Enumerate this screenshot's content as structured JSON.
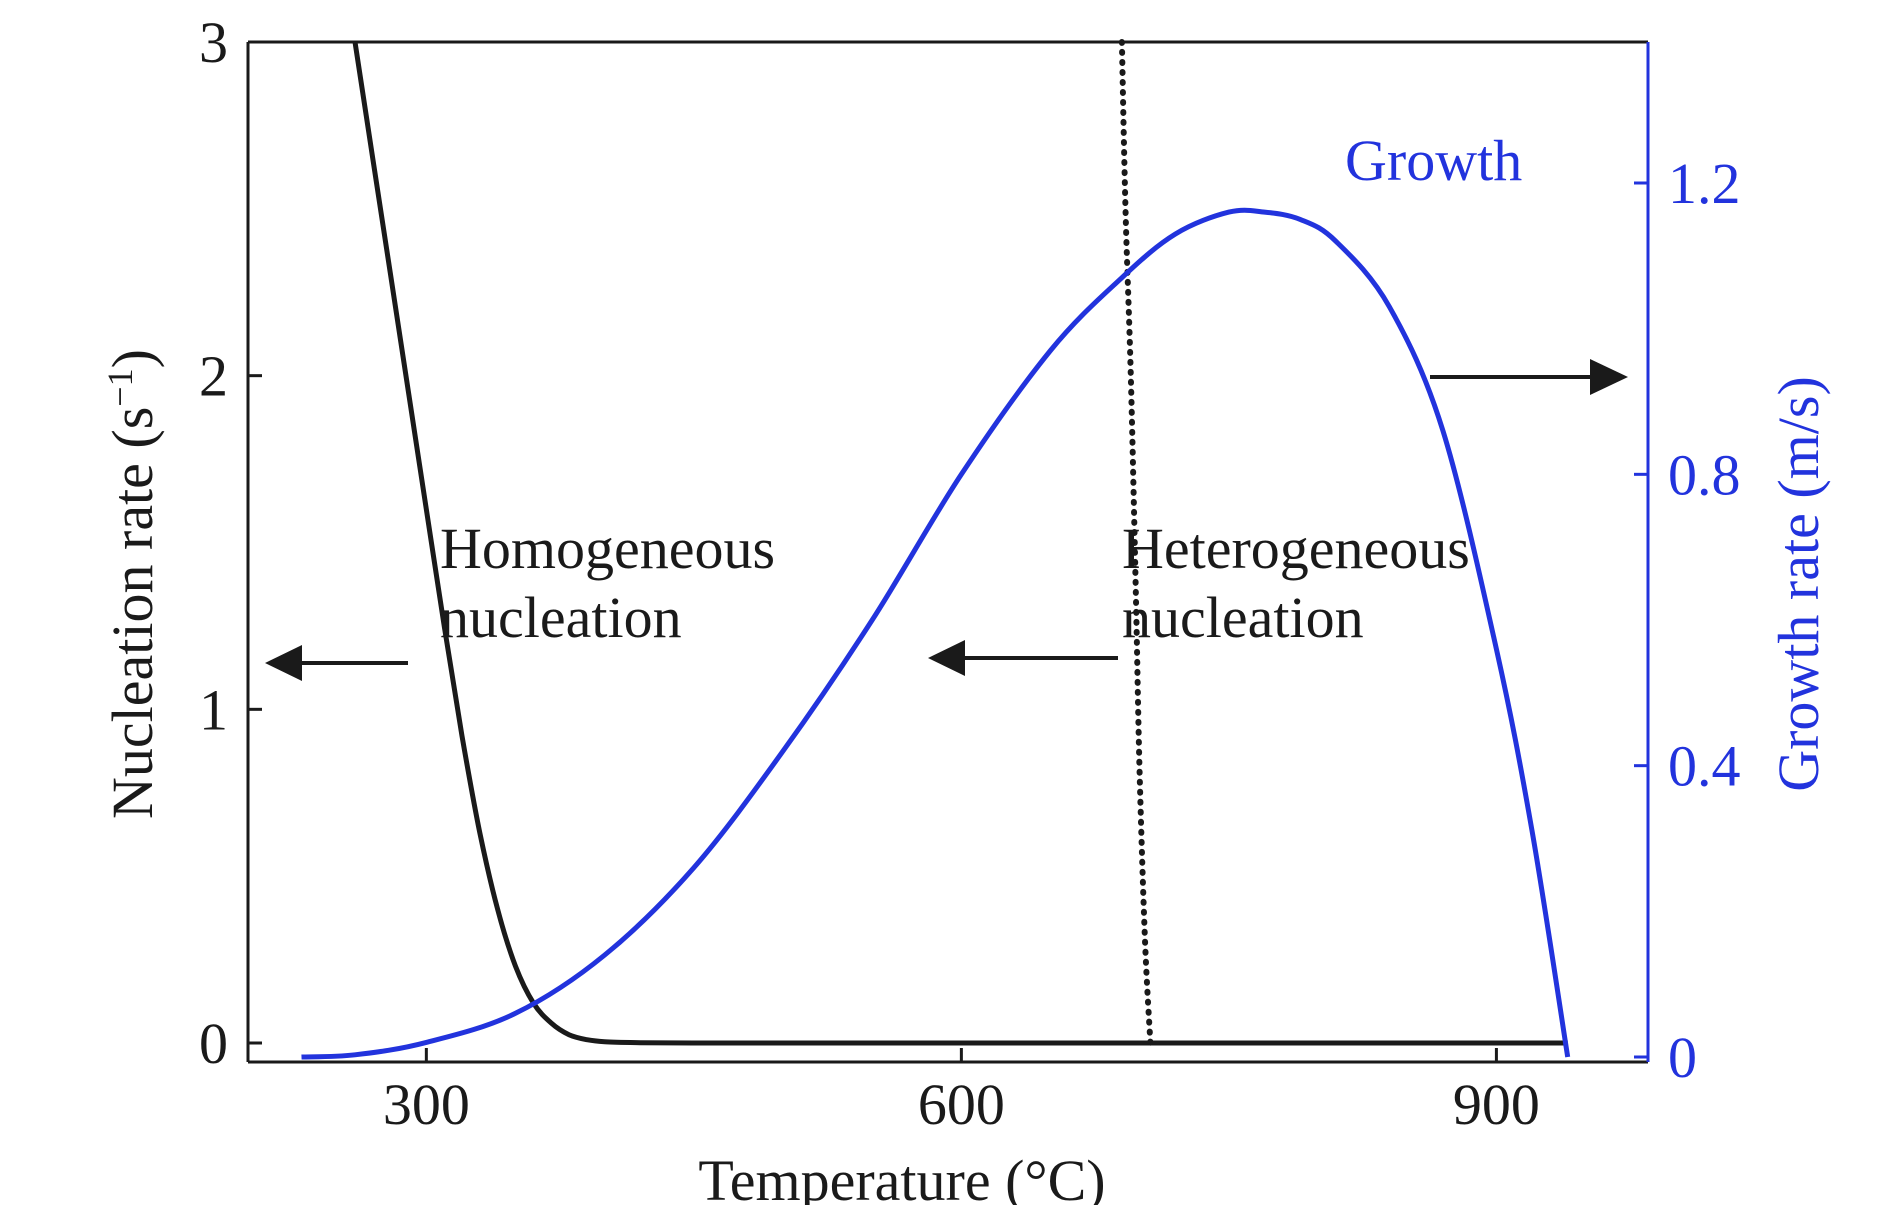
{
  "colors": {
    "nucleation": "#1a1a1a",
    "growth": "#2233dd",
    "background": "#ffffff"
  },
  "chart_data": {
    "type": "line",
    "title": "",
    "xlabel": "Temperature (°C)",
    "ylabel_left": "Nucleation rate (s",
    "ylabel_left_exp": "−1",
    "ylabel_left_close": ")",
    "ylabel_right": "Growth rate (m/s)",
    "xlim": [
      200,
      985
    ],
    "ylim_left": [
      0,
      3
    ],
    "ylim_right": [
      0,
      1.4
    ],
    "x_ticks": [
      300,
      600,
      900
    ],
    "x_tick_labels": [
      "300",
      "600",
      "900"
    ],
    "y_left_ticks": [
      0,
      1,
      2,
      3
    ],
    "y_left_tick_labels": [
      "0",
      "1",
      "2",
      "3"
    ],
    "y_right_ticks": [
      0,
      0.4,
      0.8,
      1.2
    ],
    "y_right_tick_labels": [
      "0",
      "0.4",
      "0.8",
      "1.2"
    ],
    "grid": false,
    "series": [
      {
        "axis": "left",
        "style": "solid",
        "x": [
          260,
          270,
          280,
          290,
          300,
          310,
          320,
          330,
          340,
          350,
          360,
          370,
          380,
          390,
          400,
          420,
          450,
          500,
          600,
          700,
          800,
          900,
          940
        ],
        "y": [
          3.0,
          2.65,
          2.3,
          1.95,
          1.6,
          1.25,
          0.92,
          0.63,
          0.4,
          0.23,
          0.12,
          0.06,
          0.025,
          0.01,
          0.004,
          0.001,
          0,
          0,
          0,
          0,
          0,
          0,
          0
        ]
      },
      {
        "axis": "left",
        "style": "dotted",
        "x": [
          690,
          692,
          695,
          698,
          700,
          703,
          706
        ],
        "y": [
          3.0,
          2.5,
          2.0,
          1.3,
          0.8,
          0.3,
          0.0
        ]
      },
      {
        "name": "Growth",
        "axis": "right",
        "style": "solid",
        "x": [
          230,
          260,
          300,
          350,
          400,
          450,
          500,
          550,
          600,
          650,
          690,
          720,
          750,
          770,
          790,
          810,
          840,
          870,
          900,
          920,
          940
        ],
        "y": [
          0,
          0.003,
          0.02,
          0.06,
          0.14,
          0.26,
          0.42,
          0.6,
          0.8,
          0.97,
          1.07,
          1.13,
          1.16,
          1.16,
          1.15,
          1.12,
          1.03,
          0.86,
          0.56,
          0.31,
          0.0
        ]
      }
    ],
    "annotations": [
      {
        "name": "homogeneous",
        "lines": [
          "Homogeneous",
          "nucleation"
        ]
      },
      {
        "name": "heterogeneous",
        "lines": [
          "Heterogeneous",
          "nucleation"
        ]
      },
      {
        "name": "growth",
        "lines": [
          "Growth"
        ]
      }
    ]
  }
}
